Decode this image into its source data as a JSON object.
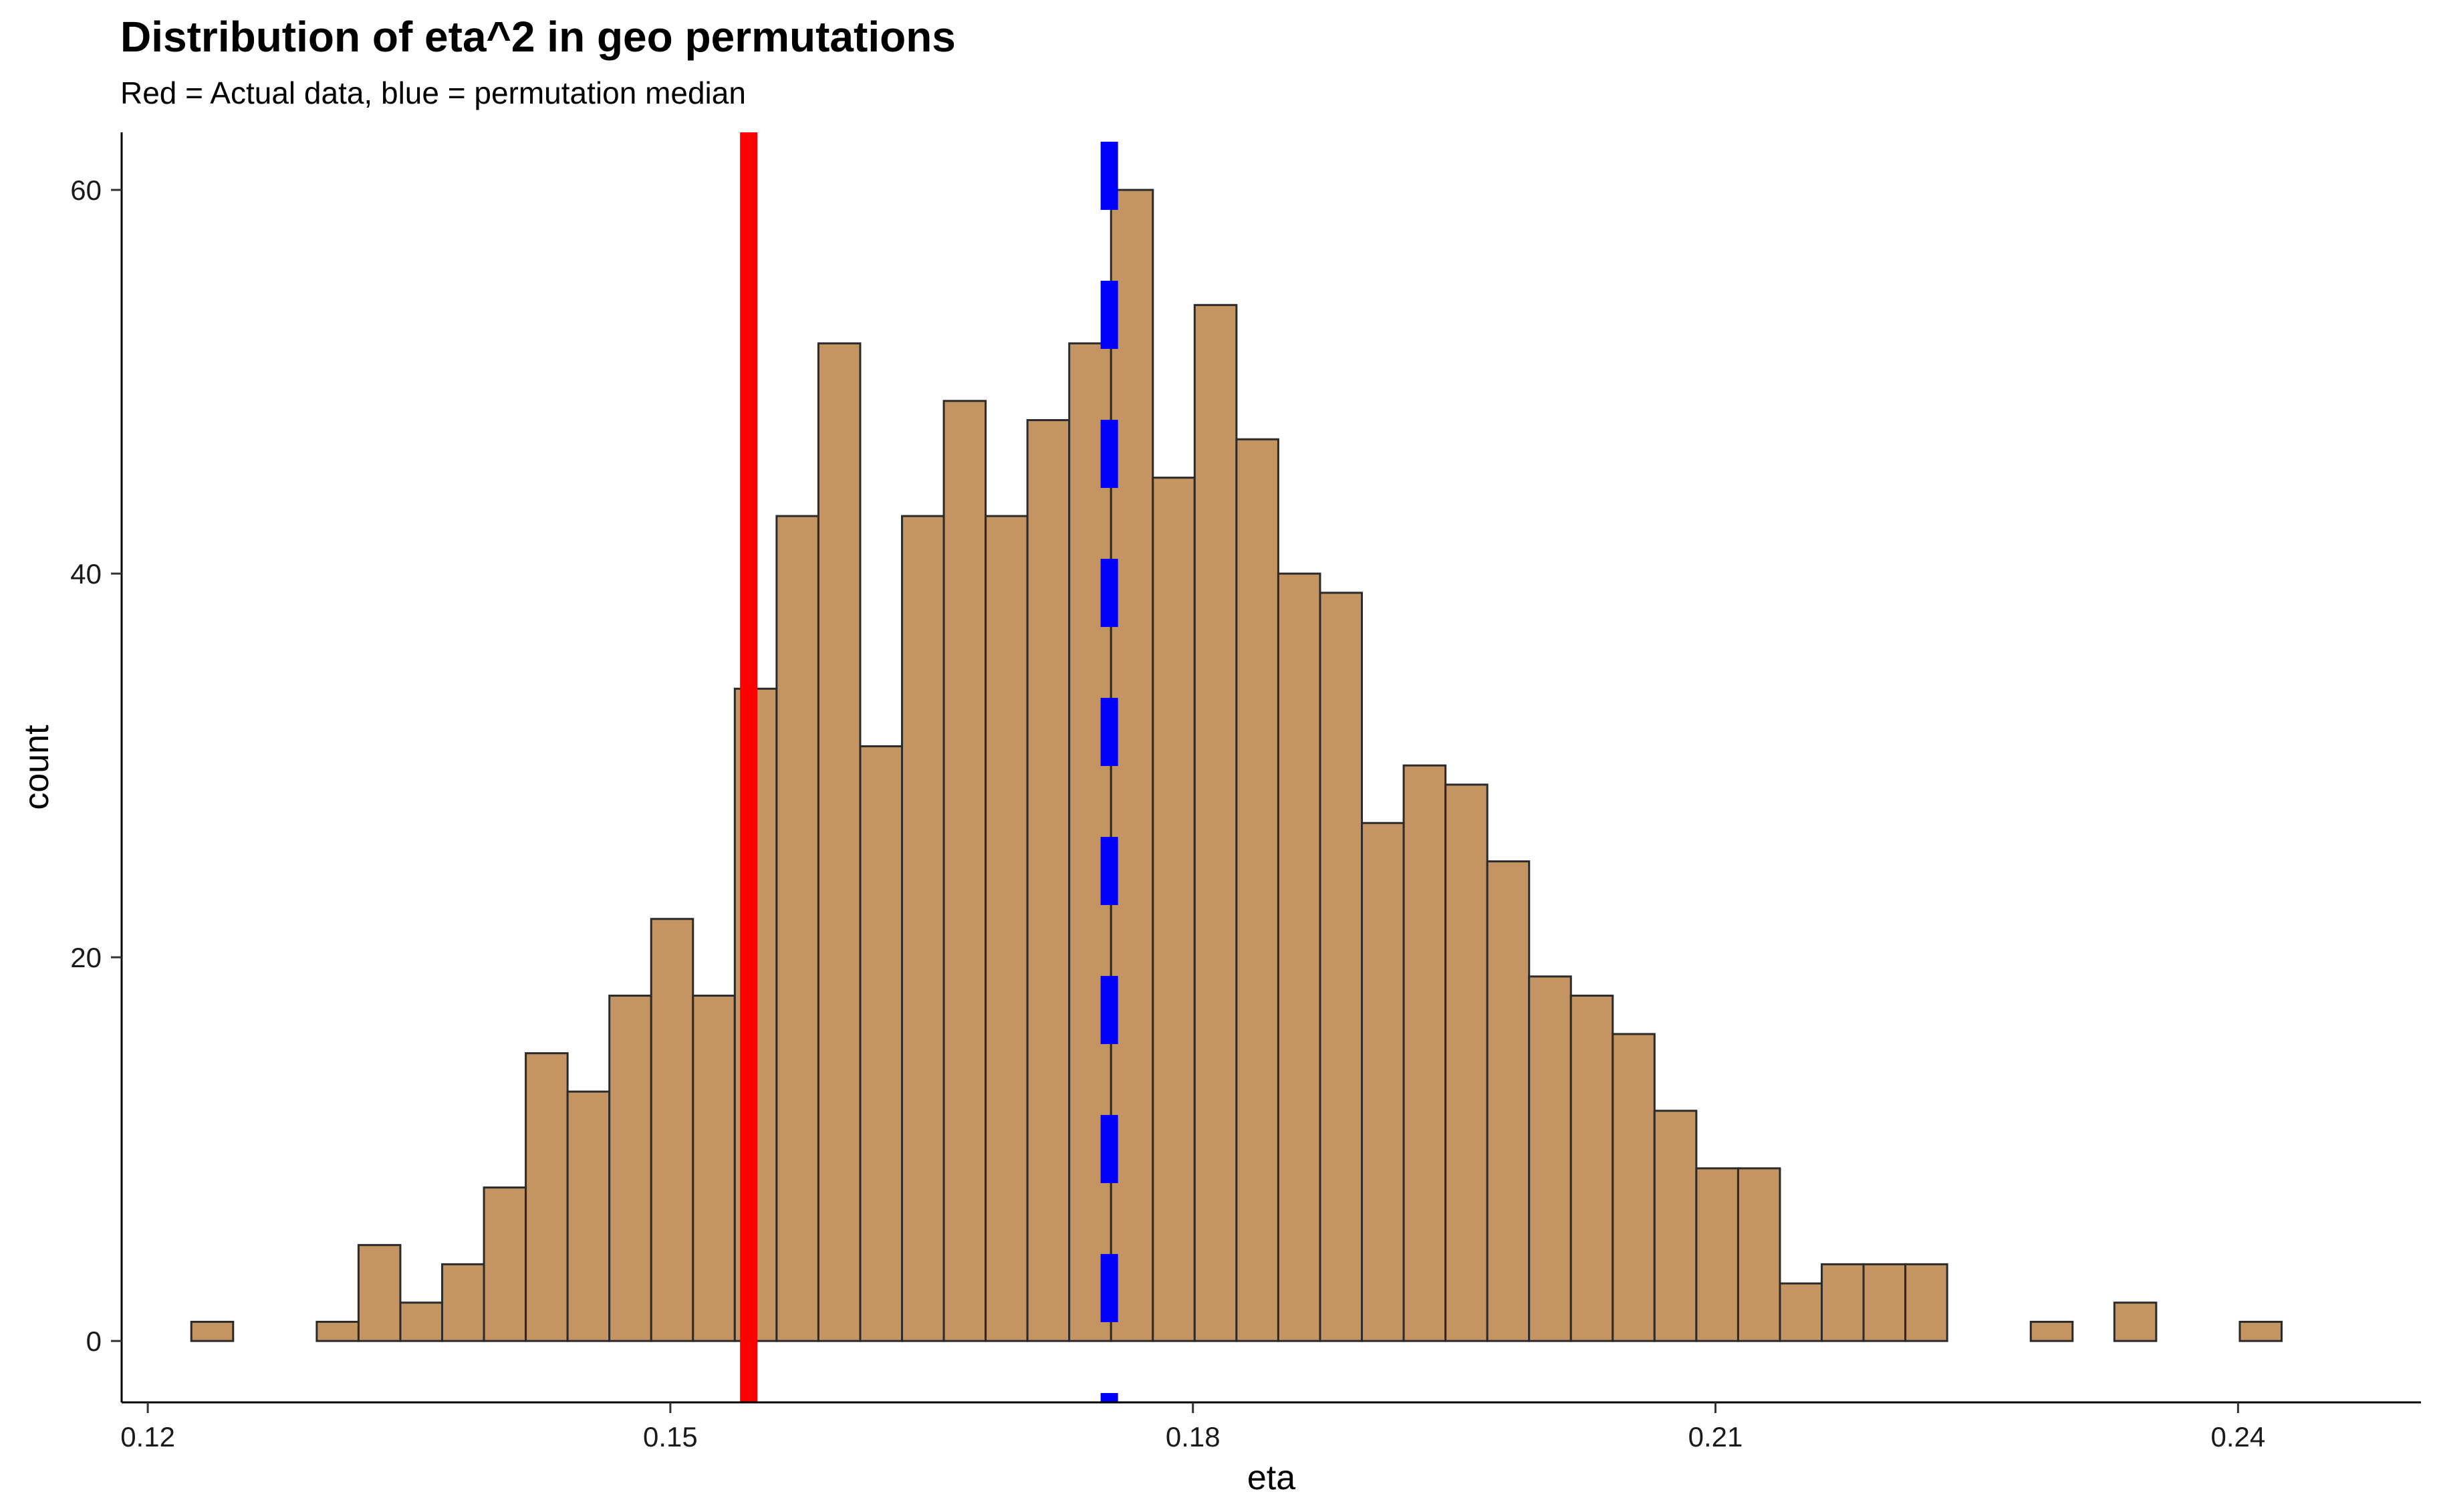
{
  "chart_data": {
    "type": "bar",
    "title": "Distribution of eta^2 in geo permutations",
    "subtitle": "Red = Actual data, blue = permutation median",
    "xlabel": "eta",
    "ylabel": "count",
    "xlim": [
      0.1185,
      0.2505
    ],
    "ylim": [
      -3.2,
      63
    ],
    "grid": false,
    "legend": "none",
    "x_ticks": [
      {
        "value": 0.12,
        "label": "0.12"
      },
      {
        "value": 0.15,
        "label": "0.15"
      },
      {
        "value": 0.18,
        "label": "0.18"
      },
      {
        "value": 0.21,
        "label": "0.21"
      },
      {
        "value": 0.24,
        "label": "0.24"
      }
    ],
    "y_ticks": [
      {
        "value": 0,
        "label": "0"
      },
      {
        "value": 20,
        "label": "20"
      },
      {
        "value": 40,
        "label": "40"
      },
      {
        "value": 60,
        "label": "60"
      }
    ],
    "bins": {
      "first_bin_start": 0.1225,
      "bin_width": 0.0024,
      "counts": [
        1,
        0,
        0,
        1,
        5,
        2,
        4,
        8,
        15,
        13,
        18,
        22,
        18,
        34,
        43,
        52,
        31,
        43,
        49,
        43,
        48,
        52,
        60,
        45,
        54,
        47,
        40,
        39,
        27,
        30,
        29,
        25,
        19,
        18,
        16,
        12,
        9,
        9,
        3,
        4,
        4,
        4,
        0,
        0,
        1,
        0,
        2,
        0,
        0,
        1
      ]
    },
    "fill_color": "#C49563",
    "outline_color": "#2B2B2B",
    "reference_lines": [
      {
        "name": "Actual data",
        "x": 0.1545,
        "color": "#FF0000",
        "style": "solid"
      },
      {
        "name": "permutation median",
        "x": 0.1752,
        "color": "#0000FF",
        "style": "dashed"
      }
    ]
  }
}
